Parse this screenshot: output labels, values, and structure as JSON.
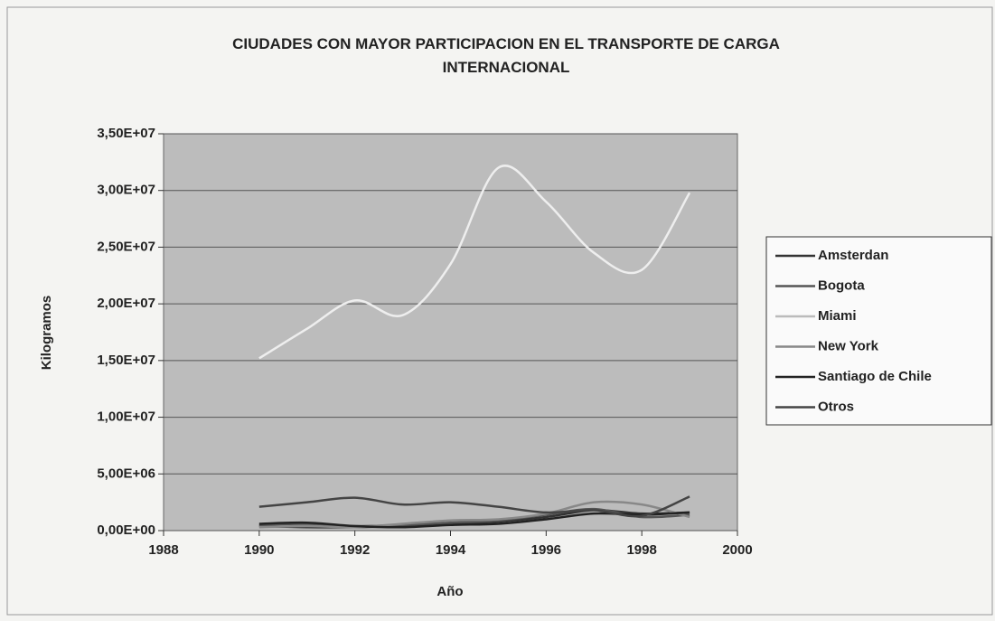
{
  "chart_data": {
    "type": "line",
    "title": "CIUDADES CON MAYOR PARTICIPACION EN EL TRANSPORTE DE CARGA INTERNACIONAL",
    "x_label": "Año",
    "y_label": "Kilogramos",
    "x": [
      1990,
      1991,
      1992,
      1993,
      1994,
      1995,
      1996,
      1997,
      1998,
      1999
    ],
    "series": [
      {
        "name": "Amsterdan",
        "color": "#333333",
        "values": [
          400000,
          300000,
          300000,
          400000,
          600000,
          800000,
          1200000,
          1800000,
          1500000,
          1600000
        ]
      },
      {
        "name": "Bogota",
        "color": "#555555",
        "values": [
          500000,
          600000,
          400000,
          500000,
          700000,
          900000,
          1400000,
          1900000,
          1200000,
          1400000
        ]
      },
      {
        "name": "Miami",
        "color": "#eeeeee",
        "values": [
          15200000,
          17800000,
          20300000,
          19000000,
          23500000,
          32000000,
          29000000,
          24500000,
          23000000,
          29800000
        ]
      },
      {
        "name": "New York",
        "color": "#888888",
        "values": [
          300000,
          400000,
          300000,
          600000,
          900000,
          1000000,
          1500000,
          2500000,
          2300000,
          1200000
        ]
      },
      {
        "name": "Santiago de Chile",
        "color": "#222222",
        "values": [
          600000,
          700000,
          400000,
          300000,
          500000,
          600000,
          1000000,
          1500000,
          1400000,
          1600000
        ]
      },
      {
        "name": "Otros",
        "color": "#444444",
        "values": [
          2100000,
          2500000,
          2900000,
          2300000,
          2500000,
          2100000,
          1600000,
          1800000,
          1300000,
          3000000
        ]
      }
    ],
    "xlim": [
      1988,
      2000
    ],
    "xticks": [
      1988,
      1990,
      1992,
      1994,
      1996,
      1998,
      2000
    ],
    "ylim": [
      0,
      35000000
    ],
    "yticks": [
      {
        "value": 0,
        "label": "0,00E+00"
      },
      {
        "value": 5000000,
        "label": "5,00E+06"
      },
      {
        "value": 10000000,
        "label": "1,00E+07"
      },
      {
        "value": 15000000,
        "label": "1,50E+07"
      },
      {
        "value": 20000000,
        "label": "2,00E+07"
      },
      {
        "value": 25000000,
        "label": "2,50E+07"
      },
      {
        "value": 30000000,
        "label": "3,00E+07"
      },
      {
        "value": 35000000,
        "label": "3,50E+07"
      }
    ],
    "grid": true,
    "legend": "right"
  }
}
